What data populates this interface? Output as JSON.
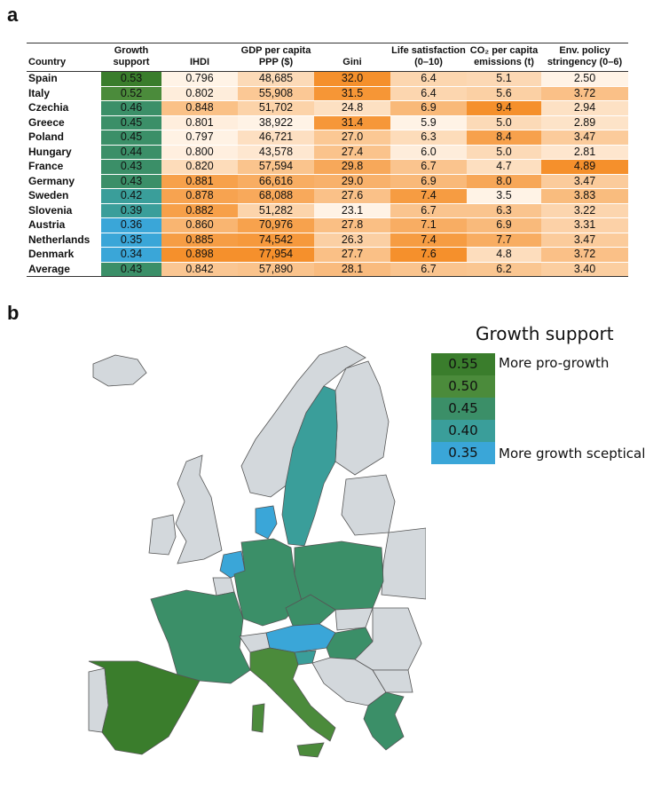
{
  "panel_a_label": "a",
  "panel_b_label": "b",
  "colors": {
    "growth": {
      "0.55": "#3a7d2c",
      "0.50": "#4b8b3b",
      "0.45": "#3b8f68",
      "0.40": "#3a9e9a",
      "0.35": "#3aa6d8"
    },
    "heat_light": "#fff3e6",
    "heat_dark": "#f5902c",
    "map_other": "#d3d8dc",
    "border": "#555555"
  },
  "chart_data": [
    {
      "type": "table",
      "columns": [
        "Country",
        "Growth support",
        "IHDI",
        "GDP per capita PPP ($)",
        "Gini",
        "Life satisfaction (0–10)",
        "CO₂ per capita emissions (t)",
        "Env. policy stringency (0–6)"
      ],
      "columns_display": [
        [
          "Country"
        ],
        [
          "Growth",
          "support"
        ],
        [
          "IHDI"
        ],
        [
          "GDP per capita",
          "PPP ($)"
        ],
        [
          "Gini"
        ],
        [
          "Life satisfaction",
          "(0–10)"
        ],
        [
          "CO₂ per capita",
          "emissions (t)"
        ],
        [
          "Env. policy",
          "stringency (0–6)"
        ]
      ],
      "rows": [
        [
          "Spain",
          "0.53",
          "0.796",
          "48,685",
          "32.0",
          "6.4",
          "5.1",
          "2.50"
        ],
        [
          "Italy",
          "0.52",
          "0.802",
          "55,908",
          "31.5",
          "6.4",
          "5.6",
          "3.72"
        ],
        [
          "Czechia",
          "0.46",
          "0.848",
          "51,702",
          "24.8",
          "6.9",
          "9.4",
          "2.94"
        ],
        [
          "Greece",
          "0.45",
          "0.801",
          "38,922",
          "31.4",
          "5.9",
          "5.0",
          "2.89"
        ],
        [
          "Poland",
          "0.45",
          "0.797",
          "46,721",
          "27.0",
          "6.3",
          "8.4",
          "3.47"
        ],
        [
          "Hungary",
          "0.44",
          "0.800",
          "43,578",
          "27.4",
          "6.0",
          "5.0",
          "2.81"
        ],
        [
          "France",
          "0.43",
          "0.820",
          "57,594",
          "29.8",
          "6.7",
          "4.7",
          "4.89"
        ],
        [
          "Germany",
          "0.43",
          "0.881",
          "66,616",
          "29.0",
          "6.9",
          "8.0",
          "3.47"
        ],
        [
          "Sweden",
          "0.42",
          "0.878",
          "68,088",
          "27.6",
          "7.4",
          "3.5",
          "3.83"
        ],
        [
          "Slovenia",
          "0.39",
          "0.882",
          "51,282",
          "23.1",
          "6.7",
          "6.3",
          "3.22"
        ],
        [
          "Austria",
          "0.36",
          "0.860",
          "70,976",
          "27.8",
          "7.1",
          "6.9",
          "3.31"
        ],
        [
          "Netherlands",
          "0.35",
          "0.885",
          "74,542",
          "26.3",
          "7.4",
          "7.7",
          "3.47"
        ],
        [
          "Denmark",
          "0.34",
          "0.898",
          "77,954",
          "27.7",
          "7.6",
          "4.8",
          "3.72"
        ]
      ],
      "average": [
        "Average",
        "0.43",
        "0.842",
        "57,890",
        "28.1",
        "6.7",
        "6.2",
        "3.40"
      ]
    },
    {
      "type": "heatmap",
      "title": "Growth support",
      "legend_values": [
        "0.55",
        "0.50",
        "0.45",
        "0.40",
        "0.35"
      ],
      "legend_notes": {
        "top": "More pro-growth",
        "bottom": "More growth sceptical"
      },
      "regions": [
        {
          "country": "Spain",
          "value": 0.53
        },
        {
          "country": "Italy",
          "value": 0.52
        },
        {
          "country": "Czechia",
          "value": 0.46
        },
        {
          "country": "Greece",
          "value": 0.45
        },
        {
          "country": "Poland",
          "value": 0.45
        },
        {
          "country": "Hungary",
          "value": 0.44
        },
        {
          "country": "France",
          "value": 0.43
        },
        {
          "country": "Germany",
          "value": 0.43
        },
        {
          "country": "Sweden",
          "value": 0.42
        },
        {
          "country": "Slovenia",
          "value": 0.39
        },
        {
          "country": "Austria",
          "value": 0.36
        },
        {
          "country": "Netherlands",
          "value": 0.35
        },
        {
          "country": "Denmark",
          "value": 0.34
        }
      ]
    }
  ]
}
